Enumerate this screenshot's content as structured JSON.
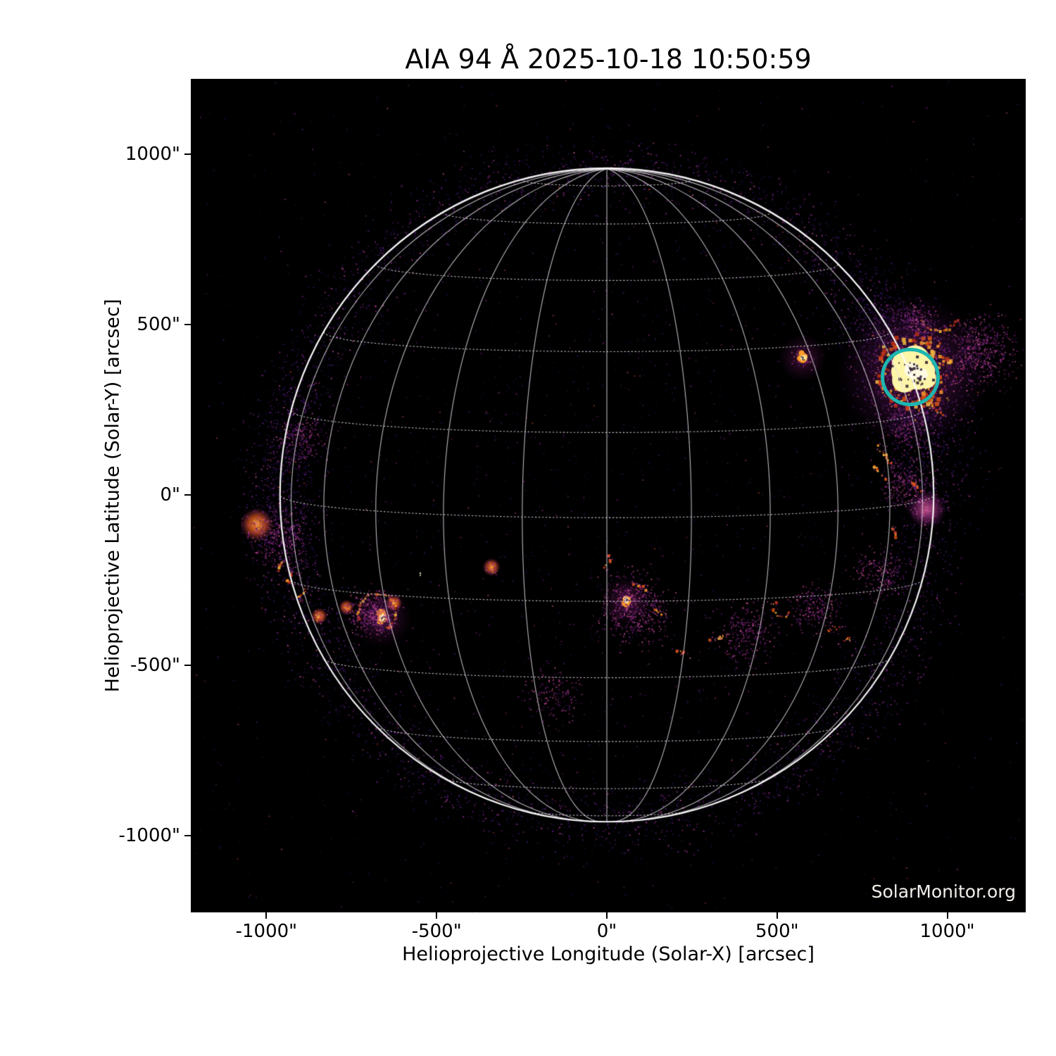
{
  "title": "AIA 94 Å 2025-10-18 10:50:59",
  "watermark": "SolarMonitor.org",
  "axes": {
    "xlabel": "Helioprojective Longitude (Solar-X) [arcsec]",
    "ylabel": "Helioprojective Latitude (Solar-Y) [arcsec]",
    "x_ticks": [
      {
        "value": -1000,
        "label": "-1000\""
      },
      {
        "value": -500,
        "label": "-500\""
      },
      {
        "value": 0,
        "label": "0\""
      },
      {
        "value": 500,
        "label": "500\""
      },
      {
        "value": 1000,
        "label": "1000\""
      }
    ],
    "y_ticks": [
      {
        "value": 1000,
        "label": "1000\""
      },
      {
        "value": 500,
        "label": "500\""
      },
      {
        "value": 0,
        "label": "0\""
      },
      {
        "value": -500,
        "label": "-500\""
      },
      {
        "value": -1000,
        "label": "-1000\""
      }
    ]
  },
  "colors": {
    "page_bg": "#ffffff",
    "plot_bg": "#000000",
    "text": "#000000",
    "grid_line": "rgba(232,227,234,0.8)",
    "solar_limb": "rgba(255,255,255,0.95)",
    "annotation_circle": "#1db6b0",
    "watermark_text": "#f2eeea",
    "core_bright": "#fdf5a8",
    "core_white": "#fffbe2",
    "flare_orange": "#fb9b28",
    "deep_orange": "#dd5418",
    "red_orange": "#c13318",
    "magenta": "#a82f8a",
    "pink": "#d85a9e",
    "dark_purple": "#3b175f"
  },
  "chart_data": {
    "type": "heatmap",
    "title": "AIA 94 Å 2025-10-18 10:50:59",
    "wavelength_label": "94 Å",
    "datetime_label": "2025-10-18 10:50:59",
    "xlabel": "Helioprojective Longitude (Solar-X) [arcsec]",
    "ylabel": "Helioprojective Latitude (Solar-Y) [arcsec]",
    "xlim": [
      -1222,
      1230
    ],
    "ylim": [
      -1226,
      1222
    ],
    "grid_on": true,
    "solar_radius_arcsec": 960,
    "heliographic_grid": {
      "spacing_deg": 15,
      "b0_deg": 4,
      "lat_range": [
        -75,
        75
      ],
      "lon_range": [
        -90,
        90
      ]
    },
    "annotation_circle": {
      "x": 891,
      "y": 347,
      "radius": 81
    },
    "features": [
      {
        "type": "core",
        "x": 899,
        "y": 362,
        "size": 95
      },
      {
        "type": "arc",
        "x": 975,
        "y": 545,
        "radius": 62,
        "from": 210,
        "to": 330
      },
      {
        "type": "arc",
        "x": 1000,
        "y": 288,
        "radius": 52,
        "from": 115,
        "to": 255
      },
      {
        "type": "cloud",
        "x": 1095,
        "y": 425,
        "size": 175,
        "n": 650
      },
      {
        "type": "cloud",
        "x": 906,
        "y": 513,
        "size": 95,
        "n": 200
      },
      {
        "type": "cloud",
        "x": 870,
        "y": 210,
        "size": 110,
        "n": 200
      },
      {
        "type": "knot",
        "x": 575,
        "y": 403,
        "size": 16
      },
      {
        "type": "streak",
        "x": 819,
        "y": 114,
        "len": 80,
        "angle": -55
      },
      {
        "type": "streak",
        "x": 800,
        "y": 70,
        "len": 62,
        "angle": -48
      },
      {
        "type": "streak",
        "x": 906,
        "y": 27,
        "len": 55,
        "angle": -42
      },
      {
        "type": "pink_patch",
        "x": 940,
        "y": -42,
        "size": 34
      },
      {
        "type": "streak",
        "x": 846,
        "y": -118,
        "len": 42,
        "angle": -70
      },
      {
        "type": "cloud",
        "x": 885,
        "y": 30,
        "size": 130,
        "n": 280
      },
      {
        "type": "cloud",
        "x": 800,
        "y": -230,
        "size": 130,
        "n": 240
      },
      {
        "type": "patch",
        "x": -1028,
        "y": -87,
        "size": 26
      },
      {
        "type": "streak",
        "x": -955,
        "y": -196,
        "len": 55,
        "angle": 62
      },
      {
        "type": "streak",
        "x": -928,
        "y": -238,
        "len": 46,
        "angle": 58
      },
      {
        "type": "streak",
        "x": -893,
        "y": -290,
        "len": 40,
        "angle": 52
      },
      {
        "type": "cloud",
        "x": -965,
        "y": -125,
        "size": 150,
        "n": 380
      },
      {
        "type": "cloud",
        "x": -890,
        "y": 170,
        "size": 120,
        "n": 200
      },
      {
        "type": "knot",
        "x": -660,
        "y": -360,
        "size": 20
      },
      {
        "type": "arc",
        "x": -676,
        "y": -345,
        "radius": 55,
        "from": -60,
        "to": 200
      },
      {
        "type": "patch",
        "x": -765,
        "y": -330,
        "size": 12
      },
      {
        "type": "patch",
        "x": -845,
        "y": -356,
        "size": 13
      },
      {
        "type": "patch",
        "x": -625,
        "y": -318,
        "size": 13
      },
      {
        "type": "cloud",
        "x": -690,
        "y": -345,
        "size": 110,
        "n": 420
      },
      {
        "type": "knot",
        "x": 58,
        "y": -310,
        "size": 17
      },
      {
        "type": "streak",
        "x": 105,
        "y": -275,
        "len": 55,
        "angle": -20
      },
      {
        "type": "streak",
        "x": 161,
        "y": -349,
        "len": 48,
        "angle": -35
      },
      {
        "type": "streak",
        "x": 2,
        "y": -200,
        "len": 46,
        "angle": 72
      },
      {
        "type": "streak",
        "x": 213,
        "y": -458,
        "len": 48,
        "angle": -28
      },
      {
        "type": "streak",
        "x": 323,
        "y": -418,
        "len": 40,
        "angle": 8
      },
      {
        "type": "arc",
        "x": 513,
        "y": -333,
        "radius": 26,
        "from": 140,
        "to": 335
      },
      {
        "type": "streak",
        "x": 664,
        "y": -395,
        "len": 52,
        "angle": 14
      },
      {
        "type": "cloud",
        "x": 80,
        "y": -340,
        "size": 185,
        "n": 520
      },
      {
        "type": "cloud",
        "x": 410,
        "y": -405,
        "size": 150,
        "n": 300
      },
      {
        "type": "cloud",
        "x": 615,
        "y": -330,
        "size": 120,
        "n": 240
      },
      {
        "type": "patch",
        "x": -339,
        "y": -212,
        "size": 14
      },
      {
        "type": "dot",
        "x": -550,
        "y": -228
      },
      {
        "type": "cloud",
        "x": -160,
        "y": -590,
        "size": 150,
        "n": 170
      },
      {
        "type": "streak",
        "x": 700,
        "y": -430,
        "len": 42,
        "angle": 25
      }
    ]
  }
}
